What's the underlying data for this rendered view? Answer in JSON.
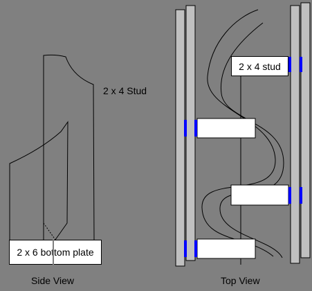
{
  "side_view": {
    "caption": "Side View",
    "stud_label": "2 x 4 Stud",
    "plate_label": "2 x 6 bottom plate"
  },
  "top_view": {
    "caption": "Top View",
    "stud_label": "2 x 4 stud"
  },
  "colors": {
    "background": "#808080",
    "plate_fill": "#c0c0c0",
    "block_fill": "#ffffff",
    "connector": "#0000ff",
    "line": "#000000"
  }
}
